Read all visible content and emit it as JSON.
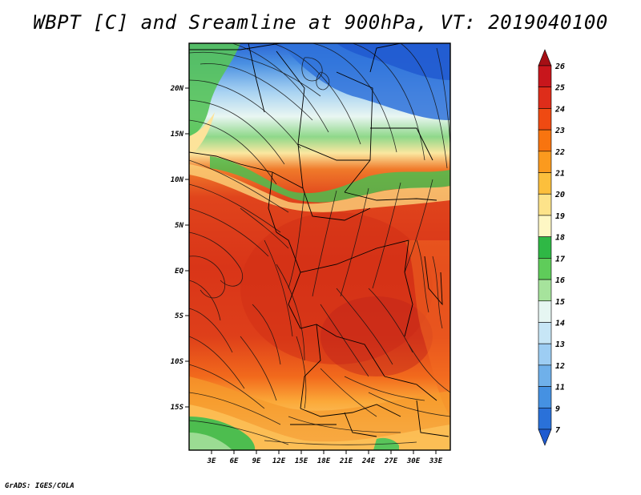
{
  "title": "WBPT [C] and Sreamline at 900hPa, VT: 2019040100",
  "footer": "GrADS: IGES/COLA",
  "map": {
    "lat_range": [
      -19.5,
      24
    ],
    "lon_range": [
      0,
      35
    ],
    "lat_ticks": [
      "20N",
      "15N",
      "10N",
      "5N",
      "EQ",
      "5S",
      "10S",
      "15S"
    ],
    "lon_ticks": [
      "3E",
      "6E",
      "9E",
      "12E",
      "15E",
      "18E",
      "21E",
      "24E",
      "27E",
      "30E",
      "33E"
    ]
  },
  "colorbar": {
    "labels": [
      "26",
      "25",
      "24",
      "23",
      "22",
      "21",
      "20",
      "19",
      "18",
      "17",
      "16",
      "15",
      "14",
      "13",
      "12",
      "11",
      "9",
      "7"
    ],
    "colors": [
      "#a50f15",
      "#c8161c",
      "#de2d1a",
      "#ef4a12",
      "#f8740f",
      "#fb9a1e",
      "#fcbf3c",
      "#fde38a",
      "#fef7c4",
      "#2fb845",
      "#5fcc5a",
      "#a6e39c",
      "#e6f6f2",
      "#c7e6f6",
      "#9dcdf3",
      "#6fb0ea",
      "#4591e2",
      "#2a71d9",
      "#1f5bd0"
    ]
  }
}
